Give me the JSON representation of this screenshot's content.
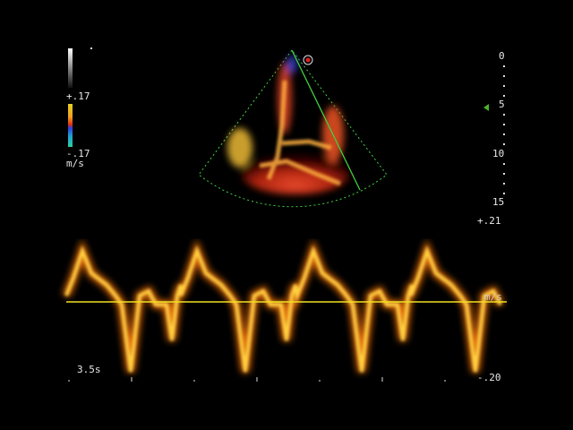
{
  "color_scale": {
    "top_label": "+.17",
    "bottom_label": "-.17",
    "unit": "m/s"
  },
  "depth_scale": {
    "ticks": [
      "0",
      "5",
      "10",
      "15"
    ],
    "focus_marker_color": "#4caf2a"
  },
  "spectral": {
    "top_label": "+.21",
    "unit_label": "m/s",
    "bottom_label": "-.20",
    "time_label": "3.5s",
    "baseline_color": "#f0e020"
  },
  "colors": {
    "trace": "#ffd040",
    "trace_edge": "#ff7a10",
    "sector_outline": "#40d040",
    "cursor_line": "#40d040"
  }
}
